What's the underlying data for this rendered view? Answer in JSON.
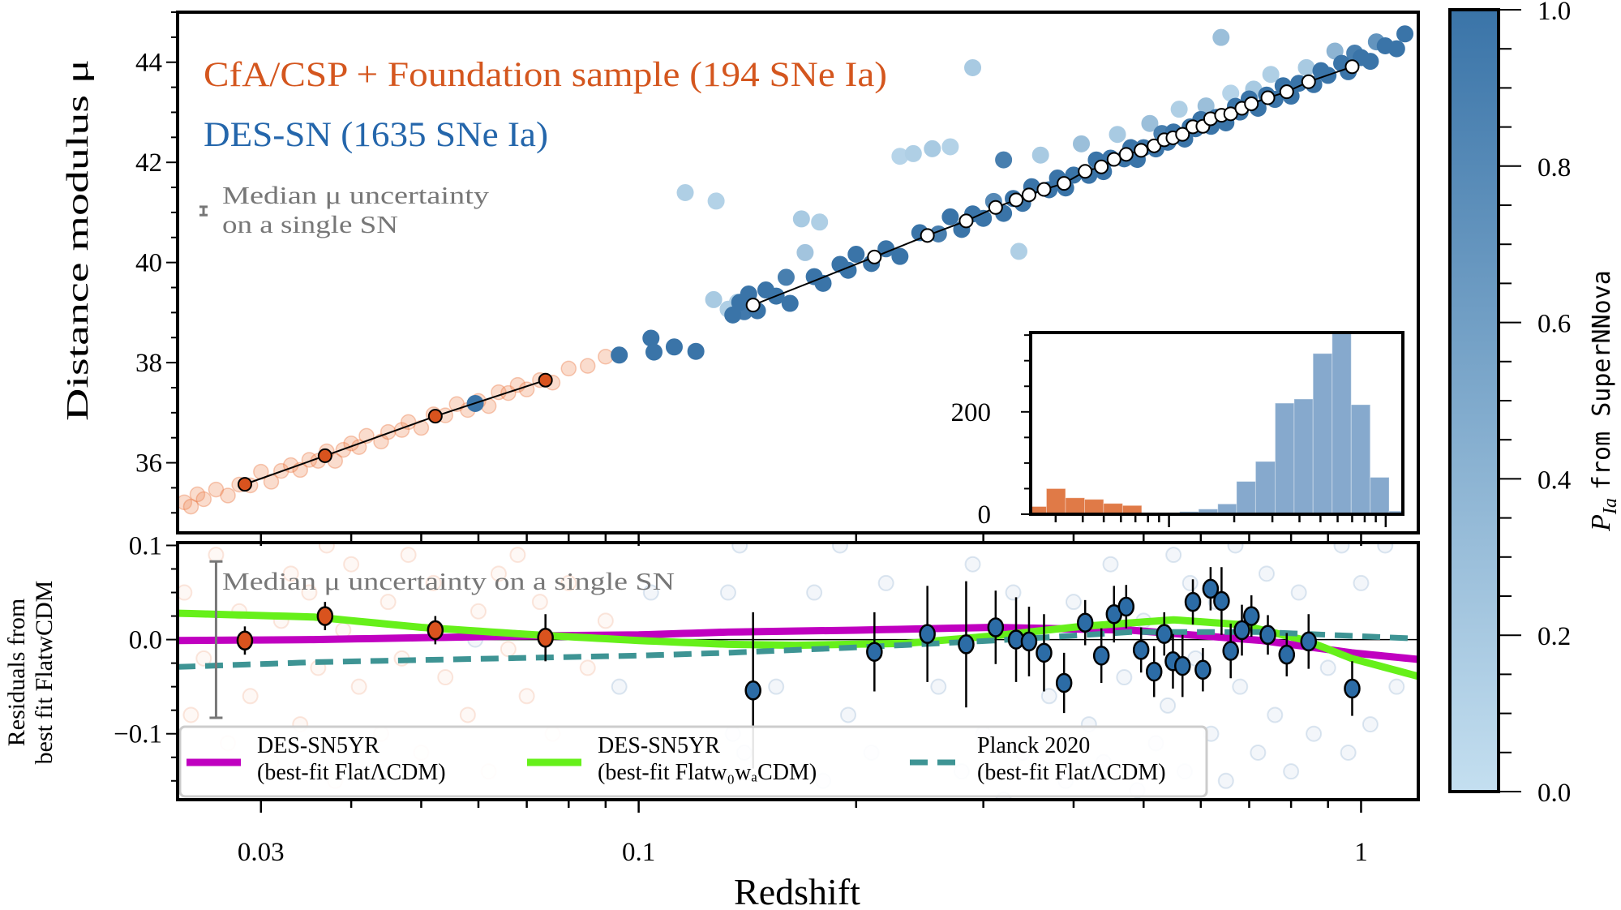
{
  "chart_data": {
    "type": "scatter",
    "xlabel": "Redshift",
    "xscale": "log",
    "xlim": [
      0.023,
      1.2
    ],
    "xticks": [
      {
        "value": 0.03,
        "label": "0.03"
      },
      {
        "value": 0.1,
        "label": "0.1"
      },
      {
        "value": 1,
        "label": "1"
      }
    ],
    "top": {
      "ylabel": "Distance modulus μ",
      "ylim": [
        34.6,
        45.0
      ],
      "yticks": [
        {
          "value": 36,
          "label": "36"
        },
        {
          "value": 38,
          "label": "38"
        },
        {
          "value": 40,
          "label": "40"
        },
        {
          "value": 42,
          "label": "42"
        },
        {
          "value": 44,
          "label": "44"
        }
      ],
      "annotations": {
        "lowz_sample": "CfA/CSP + Foundation sample (194 SNe Ia)",
        "des_sample": "DES-SN (1635 SNe Ia)",
        "median_line1": "Median μ uncertainty",
        "median_line2": "on a single SN"
      },
      "median_bar_mu": 41.03,
      "binned_lowz": {
        "z": [
          0.0285,
          0.0368,
          0.0523,
          0.0743
        ],
        "mu": [
          35.57,
          36.14,
          36.93,
          37.65
        ]
      },
      "binned_des": {
        "z": [
          0.144,
          0.212,
          0.251,
          0.284,
          0.312,
          0.333,
          0.347,
          0.364,
          0.388,
          0.415,
          0.437,
          0.455,
          0.473,
          0.496,
          0.517,
          0.534,
          0.549,
          0.566,
          0.585,
          0.604,
          0.619,
          0.641,
          0.66,
          0.684,
          0.705,
          0.743,
          0.789,
          0.846,
          0.972
        ],
        "mu": [
          39.15,
          40.11,
          40.54,
          40.83,
          41.1,
          41.25,
          41.35,
          41.46,
          41.58,
          41.82,
          41.91,
          42.06,
          42.16,
          42.24,
          42.33,
          42.45,
          42.49,
          42.56,
          42.71,
          42.72,
          42.87,
          42.94,
          42.97,
          43.08,
          43.17,
          43.29,
          43.41,
          43.61,
          43.91
        ]
      }
    },
    "residuals": {
      "ylabel_line1": "Residuals from",
      "ylabel_line2": "best fit FlatwCDM",
      "ylim": [
        -0.17,
        0.103
      ],
      "yticks": [
        {
          "value": 0.1,
          "label": "0.1"
        },
        {
          "value": 0.0,
          "label": "0.0"
        },
        {
          "value": -0.1,
          "label": "−0.1"
        }
      ],
      "median_label": "Median μ uncertainty on a single SN",
      "median_mu_uncertainty": 0.083,
      "binned_lowz": {
        "z": [
          0.0285,
          0.0368,
          0.0523,
          0.0743
        ],
        "resid": [
          -0.001,
          0.025,
          0.01,
          0.002
        ],
        "err": [
          0.015,
          0.015,
          0.015,
          0.025
        ]
      },
      "binned_des": {
        "z": [
          0.144,
          0.212,
          0.251,
          0.284,
          0.312,
          0.333,
          0.347,
          0.364,
          0.388,
          0.415,
          0.437,
          0.455,
          0.473,
          0.496,
          0.517,
          0.534,
          0.549,
          0.566,
          0.585,
          0.604,
          0.619,
          0.641,
          0.66,
          0.684,
          0.705,
          0.743,
          0.789,
          0.846,
          0.972
        ],
        "resid": [
          -0.054,
          -0.013,
          0.006,
          -0.005,
          0.013,
          0.0,
          -0.002,
          -0.014,
          -0.046,
          0.018,
          -0.017,
          0.027,
          0.035,
          -0.011,
          -0.034,
          0.006,
          -0.023,
          -0.028,
          0.04,
          -0.032,
          0.054,
          0.041,
          -0.012,
          0.01,
          0.025,
          0.005,
          -0.016,
          -0.002,
          -0.052
        ],
        "err": [
          0.083,
          0.042,
          0.051,
          0.067,
          0.039,
          0.045,
          0.037,
          0.041,
          0.032,
          0.024,
          0.029,
          0.03,
          0.023,
          0.024,
          0.027,
          0.023,
          0.029,
          0.033,
          0.024,
          0.023,
          0.023,
          0.036,
          0.029,
          0.027,
          0.022,
          0.021,
          0.023,
          0.029,
          0.029
        ]
      },
      "models": [
        {
          "name": "DES-SN5YR",
          "subtitle": "(best-fit FlatΛCDM)",
          "color": "#c000c0",
          "style": "solid",
          "z": [
            0.023,
            0.0355,
            0.05,
            0.072,
            0.1,
            0.133,
            0.2,
            0.31,
            0.48,
            0.73,
            0.97,
            1.2
          ],
          "resid": [
            -0.001,
            0.0,
            0.002,
            0.004,
            0.005,
            0.008,
            0.01,
            0.013,
            0.01,
            -0.001,
            -0.014,
            -0.021
          ]
        },
        {
          "name": "DES-SN5YR",
          "subtitle": "(best-fit Flatw₀wₐCDM)",
          "color": "#66f01a",
          "style": "solid",
          "z": [
            0.023,
            0.0355,
            0.05,
            0.072,
            0.1,
            0.133,
            0.165,
            0.235,
            0.31,
            0.41,
            0.55,
            0.68,
            0.84,
            0.97,
            1.2
          ],
          "resid": [
            0.028,
            0.024,
            0.013,
            0.005,
            -0.001,
            -0.005,
            -0.006,
            -0.004,
            0.004,
            0.014,
            0.021,
            0.016,
            -0.001,
            -0.02,
            -0.039
          ]
        },
        {
          "name": "Planck 2020",
          "subtitle": "(best-fit FlatΛCDM)",
          "color": "#3e9494",
          "style": "dashed",
          "z": [
            0.023,
            0.0355,
            0.1,
            0.133,
            0.204,
            0.31,
            0.48,
            0.73,
            1.2
          ],
          "resid": [
            -0.029,
            -0.024,
            -0.017,
            -0.014,
            -0.008,
            -0.001,
            0.008,
            0.008,
            0.001
          ]
        }
      ]
    },
    "sne_lowz": [
      [
        0.0235,
        0.05
      ],
      [
        0.024,
        -0.08
      ],
      [
        0.0245,
        0.12
      ],
      [
        0.025,
        -0.02
      ],
      [
        0.026,
        0.09
      ],
      [
        0.027,
        -0.11
      ],
      [
        0.028,
        0.03
      ],
      [
        0.029,
        -0.06
      ],
      [
        0.03,
        0.14
      ],
      [
        0.031,
        -0.13
      ],
      [
        0.032,
        0.02
      ],
      [
        0.033,
        0.07
      ],
      [
        0.034,
        -0.09
      ],
      [
        0.035,
        0.05
      ],
      [
        0.036,
        -0.03
      ],
      [
        0.037,
        0.1
      ],
      [
        0.038,
        -0.15
      ],
      [
        0.039,
        0.01
      ],
      [
        0.04,
        0.08
      ],
      [
        0.041,
        -0.05
      ],
      [
        0.042,
        0.12
      ],
      [
        0.044,
        -0.1
      ],
      [
        0.045,
        0.04
      ],
      [
        0.047,
        -0.02
      ],
      [
        0.048,
        0.09
      ],
      [
        0.05,
        -0.12
      ],
      [
        0.052,
        0.06
      ],
      [
        0.054,
        -0.04
      ],
      [
        0.056,
        0.11
      ],
      [
        0.058,
        -0.08
      ],
      [
        0.06,
        0.03
      ],
      [
        0.062,
        -0.14
      ],
      [
        0.064,
        0.07
      ],
      [
        0.066,
        -0.01
      ],
      [
        0.068,
        0.09
      ],
      [
        0.07,
        -0.06
      ],
      [
        0.073,
        0.04
      ],
      [
        0.076,
        -0.1
      ],
      [
        0.08,
        0.06
      ],
      [
        0.085,
        -0.03
      ],
      [
        0.09,
        0.02
      ]
    ],
    "sne_des": [
      [
        0.0594,
        0.0,
        1
      ],
      [
        0.094,
        -0.05,
        1
      ],
      [
        0.104,
        0.05,
        1
      ],
      [
        0.105,
        -0.25,
        1
      ],
      [
        0.112,
        -0.3,
        1
      ],
      [
        0.12,
        -0.55,
        1
      ],
      [
        0.116,
        2.7,
        0.15
      ],
      [
        0.128,
        2.3,
        0.12
      ],
      [
        0.127,
        0.35,
        0.2
      ],
      [
        0.133,
        0.05,
        0.15
      ],
      [
        0.137,
        0.12,
        0.12
      ],
      [
        0.135,
        -0.1,
        1
      ],
      [
        0.138,
        0.1,
        1
      ],
      [
        0.14,
        -0.12,
        0.95
      ],
      [
        0.142,
        0.2,
        1
      ],
      [
        0.146,
        -0.2,
        1
      ],
      [
        0.15,
        0.15,
        1
      ],
      [
        0.155,
        -0.05,
        1
      ],
      [
        0.16,
        0.25,
        0.9
      ],
      [
        0.162,
        -0.3,
        1
      ],
      [
        0.168,
        1.3,
        0.2
      ],
      [
        0.178,
        1.1,
        0.15
      ],
      [
        0.17,
        0.6,
        0.25
      ],
      [
        0.175,
        0.05,
        1
      ],
      [
        0.18,
        -0.15,
        1
      ],
      [
        0.19,
        0.1,
        1
      ],
      [
        0.195,
        -0.08,
        1
      ],
      [
        0.2,
        0.18,
        1
      ],
      [
        0.21,
        -0.12,
        1
      ],
      [
        0.22,
        0.06,
        1
      ],
      [
        0.23,
        1.8,
        0.1
      ],
      [
        0.24,
        1.75,
        0.15
      ],
      [
        0.255,
        1.7,
        0.2
      ],
      [
        0.27,
        1.6,
        0.12
      ],
      [
        0.23,
        -0.2,
        1
      ],
      [
        0.245,
        0.12,
        1
      ],
      [
        0.26,
        -0.05,
        0.9
      ],
      [
        0.27,
        0.2,
        1
      ],
      [
        0.28,
        -0.14,
        1
      ],
      [
        0.29,
        3.0,
        0.2
      ],
      [
        0.29,
        0.08,
        1
      ],
      [
        0.3,
        -0.1,
        1
      ],
      [
        0.31,
        0.15,
        0.8
      ],
      [
        0.32,
        -0.17,
        1
      ],
      [
        0.32,
        0.9,
        0.9
      ],
      [
        0.336,
        -1.05,
        0.15
      ],
      [
        0.33,
        0.05,
        1
      ],
      [
        0.34,
        -0.12,
        1
      ],
      [
        0.35,
        0.14,
        1
      ],
      [
        0.36,
        0.7,
        0.2
      ],
      [
        0.37,
        -0.06,
        1
      ],
      [
        0.38,
        0.11,
        1
      ],
      [
        0.39,
        -0.15,
        1
      ],
      [
        0.4,
        0.04,
        1
      ],
      [
        0.41,
        0.6,
        0.3
      ],
      [
        0.42,
        -0.09,
        1
      ],
      [
        0.43,
        0.16,
        1
      ],
      [
        0.44,
        -0.13,
        1
      ],
      [
        0.45,
        0.08,
        1
      ],
      [
        0.46,
        0.5,
        0.2
      ],
      [
        0.47,
        -0.04,
        1
      ],
      [
        0.48,
        0.13,
        1
      ],
      [
        0.49,
        -0.16,
        1
      ],
      [
        0.5,
        0.02,
        1
      ],
      [
        0.51,
        0.45,
        0.3
      ],
      [
        0.52,
        -0.11,
        1
      ],
      [
        0.53,
        0.15,
        0.9
      ],
      [
        0.54,
        -0.07,
        1
      ],
      [
        0.55,
        0.09,
        1
      ],
      [
        0.56,
        0.5,
        0.15
      ],
      [
        0.57,
        -0.14,
        1
      ],
      [
        0.58,
        0.06,
        1
      ],
      [
        0.59,
        -0.02,
        1
      ],
      [
        0.6,
        0.12,
        1
      ],
      [
        0.61,
        0.35,
        0.3
      ],
      [
        0.62,
        -0.1,
        1
      ],
      [
        0.64,
        1.6,
        0.3
      ],
      [
        0.63,
        0.04,
        1
      ],
      [
        0.65,
        -0.15,
        1
      ],
      [
        0.66,
        0.4,
        0.1
      ],
      [
        0.67,
        0.1,
        1
      ],
      [
        0.68,
        -0.05,
        1
      ],
      [
        0.7,
        0.14,
        1
      ],
      [
        0.71,
        0.3,
        0.2
      ],
      [
        0.72,
        -0.12,
        1
      ],
      [
        0.74,
        0.07,
        1
      ],
      [
        0.75,
        0.45,
        0.15
      ],
      [
        0.76,
        -0.08,
        1
      ],
      [
        0.78,
        0.13,
        1
      ],
      [
        0.8,
        -0.14,
        1
      ],
      [
        0.82,
        0.05,
        1
      ],
      [
        0.84,
        0.3,
        0.2
      ],
      [
        0.86,
        -0.1,
        1
      ],
      [
        0.88,
        0.12,
        1
      ],
      [
        0.9,
        -0.03,
        1
      ],
      [
        0.92,
        0.4,
        0.4
      ],
      [
        0.94,
        0.1,
        1
      ],
      [
        0.96,
        -0.12,
        1
      ],
      [
        0.98,
        0.2,
        0.9
      ],
      [
        1.0,
        0.06,
        1
      ],
      [
        1.03,
        -0.09,
        1
      ],
      [
        1.05,
        0.25,
        0.7
      ],
      [
        1.08,
        0.1,
        1
      ],
      [
        1.12,
        -0.05,
        1
      ],
      [
        1.15,
        0.18,
        1
      ]
    ],
    "inset": {
      "type": "histogram",
      "xscale": "log",
      "xlim": [
        0.023,
        1.2
      ],
      "ylim": [
        0,
        355
      ],
      "yticks": [
        {
          "value": 0,
          "label": "0"
        },
        {
          "value": 200,
          "label": "200"
        }
      ],
      "lowz": {
        "edges": [
          0.0221,
          0.0272,
          0.0333,
          0.0408,
          0.0499,
          0.0611,
          0.0748,
          0.0914
        ],
        "counts": [
          15,
          50,
          32,
          29,
          21,
          17,
          2
        ],
        "color": "#e07a47"
      },
      "des": {
        "edges": [
          0.0914,
          0.112,
          0.137,
          0.168,
          0.205,
          0.251,
          0.309,
          0.378,
          0.462,
          0.566,
          0.693,
          0.848,
          1.037,
          1.27
        ],
        "counts": [
          1,
          5,
          10,
          20,
          64,
          103,
          217,
          225,
          314,
          370,
          214,
          72,
          6
        ],
        "color": "#86a9cd"
      }
    },
    "colorbar": {
      "label_symbol": "P",
      "label_subscript": "Ia",
      "label_text": "from SuperNNova",
      "range": [
        0,
        1
      ],
      "ticks": [
        {
          "value": 0.0,
          "label": "0.0"
        },
        {
          "value": 0.2,
          "label": "0.2"
        },
        {
          "value": 0.4,
          "label": "0.4"
        },
        {
          "value": 0.6,
          "label": "0.6"
        },
        {
          "value": 0.8,
          "label": "0.8"
        },
        {
          "value": 1.0,
          "label": "1.0"
        }
      ],
      "color_low": "#c4dff0",
      "color_high": "#3a74a8"
    },
    "colors": {
      "lowz": "#d9531e",
      "des": "#2c6ca6",
      "lowz_text": "#d4561e",
      "des_text": "#2466ab",
      "median_gray": "#777777"
    }
  }
}
